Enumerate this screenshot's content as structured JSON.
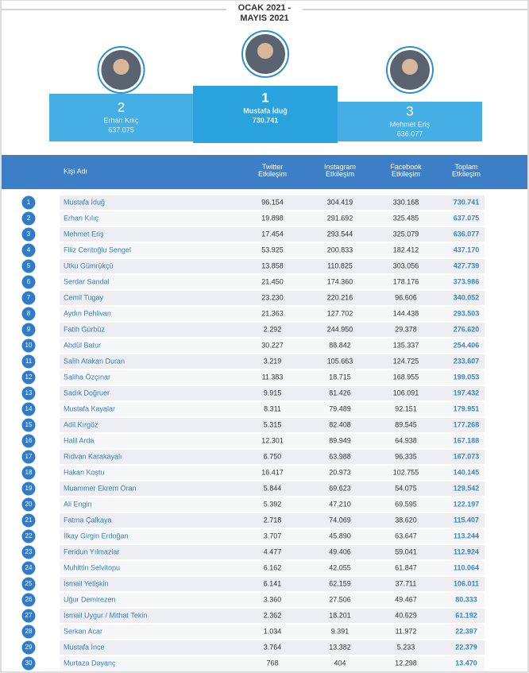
{
  "header": {
    "period_line1": "OCAK 2021 -",
    "period_line2": "MAYIS 2021"
  },
  "podium": [
    {
      "rank": "2",
      "name": "Erhan Kılıç",
      "total": "637.075"
    },
    {
      "rank": "1",
      "name": "Mustafa İduğ",
      "total": "730.741"
    },
    {
      "rank": "3",
      "name": "Mehmet Eriş",
      "total": "636.077"
    }
  ],
  "table": {
    "columns": [
      "Kişi Adı",
      "Twitter Etkileşim",
      "Instagram Etkileşim",
      "Facebook Etkileşim",
      "Toplam Etkileşim"
    ],
    "rows": [
      [
        "1",
        "Mustafa İduğ",
        "96.154",
        "304.419",
        "330.168",
        "730.741"
      ],
      [
        "2",
        "Erhan Kılıç",
        "19.898",
        "291.692",
        "325.485",
        "637.075"
      ],
      [
        "3",
        "Mehmet Eriş",
        "17.454",
        "293.544",
        "325.079",
        "636.077"
      ],
      [
        "4",
        "Filiz Ceritoğlu Sengel",
        "53.925",
        "200.833",
        "182.412",
        "437.170"
      ],
      [
        "5",
        "Utku Gümrükçü",
        "13.858",
        "110.825",
        "303.056",
        "427.739"
      ],
      [
        "6",
        "Serdar Sandal",
        "21.450",
        "174.360",
        "178.176",
        "373.986"
      ],
      [
        "7",
        "Cemil Tugay",
        "23.230",
        "220.216",
        "96.606",
        "340.052"
      ],
      [
        "8",
        "Aydın Pehlivan",
        "21.363",
        "127.702",
        "144.438",
        "293.503"
      ],
      [
        "9",
        "Fatih Gürbüz",
        "2.292",
        "244.950",
        "29.378",
        "276.620"
      ],
      [
        "10",
        "Abdül Batur",
        "30.227",
        "88.842",
        "135.337",
        "254.406"
      ],
      [
        "11",
        "Salih Atakan Duran",
        "3.219",
        "105.663",
        "124.725",
        "233.607"
      ],
      [
        "12",
        "Saliha Özçınar",
        "11.383",
        "18.715",
        "168.955",
        "199.053"
      ],
      [
        "13",
        "Sadık Doğruer",
        "9.915",
        "81.426",
        "106.091",
        "197.432"
      ],
      [
        "14",
        "Mustafa Kayalar",
        "8.311",
        "79.489",
        "92.151",
        "179.951"
      ],
      [
        "15",
        "Adil Kırgöz",
        "5.315",
        "82.408",
        "89.545",
        "177.268"
      ],
      [
        "16",
        "Halil Arda",
        "12.301",
        "89.949",
        "64.938",
        "167.188"
      ],
      [
        "17",
        "Rıdvan Karakayalı",
        "6.750",
        "63.988",
        "96.335",
        "167.073"
      ],
      [
        "18",
        "Hakan Koştu",
        "16.417",
        "20.973",
        "102.755",
        "140.145"
      ],
      [
        "19",
        "Muammer Ekrem Oran",
        "5.844",
        "69.623",
        "54.075",
        "129.542"
      ],
      [
        "20",
        "Ali Engin",
        "5.392",
        "47.210",
        "69.595",
        "122.197"
      ],
      [
        "21",
        "Fatma Çalkaya",
        "2.718",
        "74.069",
        "38.620",
        "115.407"
      ],
      [
        "22",
        "İlkay Girgin Erdoğan",
        "3.707",
        "45.890",
        "63.647",
        "113.244"
      ],
      [
        "23",
        "Feridun Yılmazlar",
        "4.477",
        "49.406",
        "59.041",
        "112.924"
      ],
      [
        "24",
        "Muhittin Selvitopu",
        "6.162",
        "42.055",
        "61.847",
        "110.064"
      ],
      [
        "25",
        "İsmail Yetişkin",
        "6.141",
        "62.159",
        "37.711",
        "106.011"
      ],
      [
        "26",
        "Uğur Demirezen",
        "3.360",
        "27.506",
        "49.467",
        "80.333"
      ],
      [
        "27",
        "İsmail Uygur / Mithat Tekin",
        "2.362",
        "18.201",
        "40.629",
        "61.192"
      ],
      [
        "28",
        "Serkan Acar",
        "1.034",
        "9.391",
        "11.972",
        "22.397"
      ],
      [
        "29",
        "Mustafa İnce",
        "3.764",
        "13.382",
        "5.233",
        "22.379"
      ],
      [
        "30",
        "Murtaza Dayanç",
        "768",
        "404",
        "12.298",
        "13.470"
      ]
    ]
  }
}
